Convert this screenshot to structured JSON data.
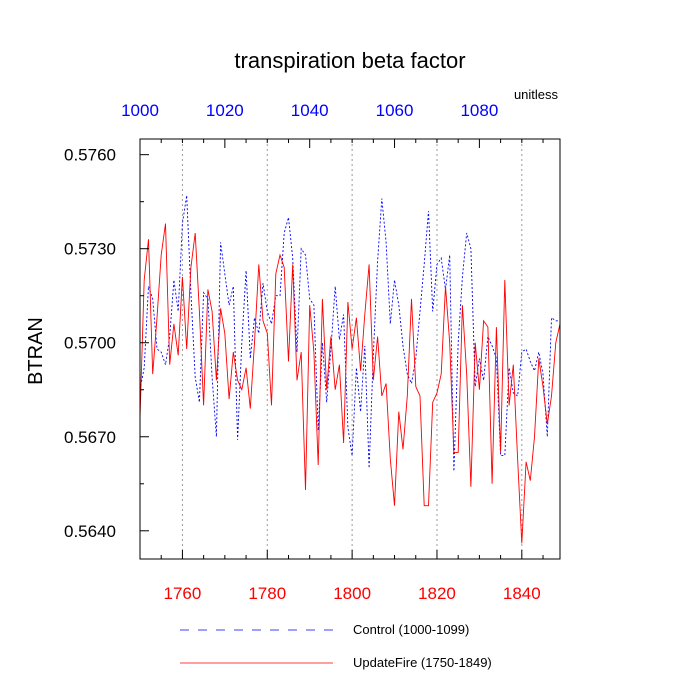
{
  "chart_data": {
    "type": "line",
    "title": "transpiration beta factor",
    "units": "unitless",
    "ylabel": "BTRAN",
    "ylim": [
      0.5631,
      0.5765
    ],
    "yticks": [
      "0.5640",
      "0.5670",
      "0.5700",
      "0.5730",
      "0.5760"
    ],
    "bottom_axis": {
      "range": [
        1750,
        1849
      ],
      "ticks": [
        "1760",
        "1780",
        "1800",
        "1820",
        "1840"
      ],
      "color": "#ff0000"
    },
    "top_axis": {
      "range": [
        1000,
        1099
      ],
      "ticks": [
        "1000",
        "1020",
        "1040",
        "1060",
        "1080"
      ],
      "color": "#0000ff"
    },
    "grid": "vertical dotted at bottom-axis major ticks",
    "legend_placement": "bottom",
    "series": [
      {
        "name": "Control (1000-1099)",
        "color": "#0000ff",
        "style": "dashed",
        "axis": "top",
        "x_start": 1000,
        "values": [
          0.5685,
          0.5692,
          0.5718,
          0.5714,
          0.5698,
          0.5697,
          0.5693,
          0.5702,
          0.572,
          0.571,
          0.5738,
          0.5747,
          0.5716,
          0.5689,
          0.5681,
          0.5716,
          0.5714,
          0.5689,
          0.567,
          0.5732,
          0.5722,
          0.5712,
          0.5718,
          0.5669,
          0.57,
          0.5723,
          0.5695,
          0.5708,
          0.5703,
          0.5719,
          0.571,
          0.5706,
          0.5715,
          0.5715,
          0.5735,
          0.574,
          0.5727,
          0.5697,
          0.573,
          0.5728,
          0.5714,
          0.5712,
          0.5672,
          0.57,
          0.5681,
          0.5698,
          0.5718,
          0.5701,
          0.5709,
          0.5673,
          0.5664,
          0.5692,
          0.5678,
          0.5699,
          0.566,
          0.5696,
          0.5726,
          0.5746,
          0.5732,
          0.5706,
          0.572,
          0.5712,
          0.5699,
          0.569,
          0.5687,
          0.5695,
          0.571,
          0.5725,
          0.5742,
          0.571,
          0.5725,
          0.5727,
          0.5717,
          0.5728,
          0.5659,
          0.57,
          0.5721,
          0.5735,
          0.573,
          0.5686,
          0.5695,
          0.5688,
          0.5702,
          0.5699,
          0.5695,
          0.5664,
          0.5664,
          0.5692,
          0.5684,
          0.5683,
          0.5697,
          0.5698,
          0.5694,
          0.5691,
          0.5697,
          0.569,
          0.567,
          0.5708,
          0.5707,
          0.5707
        ]
      },
      {
        "name": "UpdateFire (1750-1849)",
        "color": "#ff0000",
        "style": "solid",
        "axis": "bottom",
        "x_start": 1750,
        "values": [
          0.5676,
          0.572,
          0.5733,
          0.569,
          0.5708,
          0.5728,
          0.5738,
          0.5693,
          0.5706,
          0.5696,
          0.5721,
          0.5698,
          0.5724,
          0.5735,
          0.571,
          0.568,
          0.5717,
          0.571,
          0.5688,
          0.5711,
          0.5703,
          0.5682,
          0.5697,
          0.5688,
          0.5685,
          0.5692,
          0.5679,
          0.57,
          0.5725,
          0.5707,
          0.5703,
          0.568,
          0.5722,
          0.5728,
          0.5724,
          0.5694,
          0.5725,
          0.5688,
          0.5697,
          0.5653,
          0.5712,
          0.5697,
          0.5661,
          0.5714,
          0.5685,
          0.5702,
          0.5685,
          0.5693,
          0.5668,
          0.5713,
          0.5698,
          0.5708,
          0.5691,
          0.5709,
          0.5725,
          0.5688,
          0.5702,
          0.5683,
          0.5687,
          0.5663,
          0.5648,
          0.5678,
          0.5666,
          0.5683,
          0.5714,
          0.5686,
          0.5683,
          0.5648,
          0.5648,
          0.5681,
          0.5684,
          0.569,
          0.5718,
          0.57,
          0.5665,
          0.5665,
          0.5712,
          0.569,
          0.5654,
          0.57,
          0.5685,
          0.5707,
          0.5705,
          0.5655,
          0.5705,
          0.5665,
          0.572,
          0.568,
          0.5693,
          0.5663,
          0.5636,
          0.5662,
          0.5656,
          0.567,
          0.5695,
          0.5686,
          0.5674,
          0.5683,
          0.57,
          0.5706
        ]
      }
    ]
  }
}
